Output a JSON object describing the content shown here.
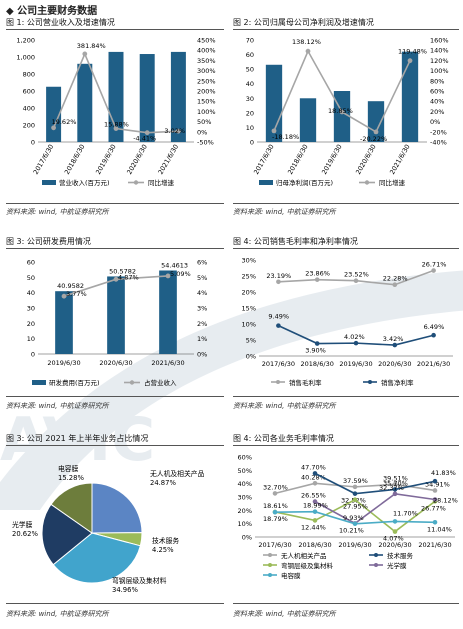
{
  "section_title": "◆ 公司主要财务数据",
  "watermark": "AVIC",
  "charts": [
    {
      "title": "图 1: 公司营业收入及增速情况",
      "source": "资料来源: wind, 中航证券研究所",
      "chart_data": {
        "type": "bar+line",
        "categories": [
          "2017/6/30",
          "2018/6/30",
          "2019/6/30",
          "2020/6/30",
          "2021/6/30"
        ],
        "series": [
          {
            "name": "营业收入(百万元)",
            "type": "bar",
            "axis": "left",
            "values": [
              650,
              920,
              1060,
              1035,
              1060
            ],
            "labels": [
              "",
              "",
              "",
              "",
              ""
            ]
          },
          {
            "name": "同比增速",
            "type": "line",
            "axis": "right",
            "values": [
              19.62,
              381.84,
              15.88,
              -4.41,
              3.02
            ],
            "labels": [
              "19.62%",
              "381.84%",
              "15.88%",
              "-4.41%",
              "3.02%"
            ]
          }
        ],
        "y_left": {
          "min": 0,
          "max": 1200,
          "ticks": [
            "0",
            "200",
            "400",
            "600",
            "800",
            "1,000",
            "1,200"
          ]
        },
        "y_right": {
          "min": -50,
          "max": 450,
          "ticks": [
            "-50%",
            "0%",
            "50%",
            "100%",
            "150%",
            "200%",
            "250%",
            "300%",
            "350%",
            "400%",
            "450%"
          ]
        }
      }
    },
    {
      "title": "图 2: 公司归属母公司净利润及增速情况",
      "source": "资料来源: wind, 中航证券研究所",
      "chart_data": {
        "type": "bar+line",
        "categories": [
          "2017/6/30",
          "2018/6/30",
          "2019/6/30",
          "2020/6/30",
          "2021/6/30"
        ],
        "series": [
          {
            "name": "归母净利润(百万元)",
            "type": "bar",
            "axis": "left",
            "values": [
              53,
              30,
              35,
              28,
              62
            ],
            "labels": [
              "",
              "",
              "",
              "",
              ""
            ]
          },
          {
            "name": "同比增速",
            "type": "line",
            "axis": "right",
            "values": [
              -18.18,
              138.12,
              18.85,
              -20.22,
              119.48
            ],
            "labels": [
              "-18.18%",
              "138.12%",
              "18.85%",
              "-20.22%",
              "119.48%"
            ]
          }
        ],
        "y_left": {
          "min": 0,
          "max": 70,
          "ticks": [
            "0",
            "10",
            "20",
            "30",
            "40",
            "50",
            "60",
            "70"
          ]
        },
        "y_right": {
          "min": -40,
          "max": 160,
          "ticks": [
            "-40%",
            "-20%",
            "0%",
            "20%",
            "40%",
            "60%",
            "80%",
            "100%",
            "120%",
            "140%",
            "160%"
          ]
        }
      }
    },
    {
      "title": "图 3: 公司研发费用情况",
      "source": "资料来源: wind, 中航证券研究所",
      "chart_data": {
        "type": "bar+line",
        "categories": [
          "2019/6/30",
          "2020/6/30",
          "2021/6/30"
        ],
        "series": [
          {
            "name": "研发费用(百万元)",
            "type": "bar",
            "axis": "left",
            "values": [
              40.9582,
              50.5782,
              54.4613
            ],
            "labels": [
              "40.9582",
              "50.5782",
              "54.4613"
            ]
          },
          {
            "name": "占营业收入",
            "type": "line",
            "axis": "right",
            "values": [
              3.77,
              4.87,
              5.09
            ],
            "labels": [
              "3.77%",
              "4.87%",
              "5.09%"
            ]
          }
        ],
        "y_left": {
          "min": 0,
          "max": 60,
          "ticks": [
            "0",
            "10",
            "20",
            "30",
            "40",
            "50",
            "60"
          ]
        },
        "y_right": {
          "min": 0,
          "max": 6,
          "ticks": [
            "0%",
            "1%",
            "2%",
            "3%",
            "4%",
            "5%",
            "6%"
          ]
        }
      }
    },
    {
      "title": "图 4: 公司销售毛利率和净利率情况",
      "source": "资料来源: wind, 中航证券研究所",
      "chart_data": {
        "type": "line",
        "categories": [
          "2017/6/30",
          "2018/6/30",
          "2019/6/30",
          "2020/6/30",
          "2021/6/30"
        ],
        "series": [
          {
            "name": "销售毛利率",
            "color": "#a6a6a6",
            "values": [
              23.19,
              23.86,
              23.52,
              22.28,
              26.71
            ],
            "labels": [
              "23.19%",
              "23.86%",
              "23.52%",
              "22.28%",
              "26.71%"
            ]
          },
          {
            "name": "销售净利率",
            "color": "#1f4e79",
            "values": [
              9.49,
              3.9,
              4.02,
              3.42,
              6.49
            ],
            "labels": [
              "9.49%",
              "3.90%",
              "4.02%",
              "3.42%",
              "6.49%"
            ]
          }
        ],
        "y": {
          "min": 0,
          "max": 30,
          "ticks": [
            "0%",
            "5%",
            "10%",
            "15%",
            "20%",
            "25%",
            "30%"
          ]
        }
      }
    },
    {
      "title": "图 3: 公司 2021 年上半年业务占比情况",
      "source": "资料来源: wind, 中航证券研究所",
      "chart_data": {
        "type": "pie",
        "slices": [
          {
            "label": "无人机及相关产品, 24.87%",
            "value": 24.87,
            "color": "#5b85c4"
          },
          {
            "label": "技术服务, 4.25%",
            "value": 4.25,
            "color": "#9bbb59"
          },
          {
            "label": "弯钢层级及集材料, 34.96%",
            "value": 34.96,
            "color": "#41a4cc"
          },
          {
            "label": "光学膜, 20.62%",
            "value": 20.62,
            "color": "#1f3c63"
          },
          {
            "label": "电容膜, 15.28%",
            "value": 15.28,
            "color": "#6d7d3c"
          }
        ]
      }
    },
    {
      "title": "图 4: 公司各业务毛利率情况",
      "source": "资料来源: wind, 中航证券研究所",
      "chart_data": {
        "type": "line",
        "categories": [
          "2017/6/30",
          "2018/6/30",
          "2019/6/30",
          "2020/6/30",
          "2021/6/30"
        ],
        "series": [
          {
            "name": "无人机相关产品",
            "color": "#a6a6a6",
            "values": [
              32.7,
              40.28,
              37.59,
              39.51,
              34.91
            ],
            "labels": [
              "32.70%",
              "40.28%",
              "37.59%",
              "39.51%",
              "34.91%"
            ]
          },
          {
            "name": "技术服务",
            "color": "#1f4e79",
            "values": [
              null,
              47.7,
              32.52,
              35.7,
              41.83
            ],
            "labels": [
              "",
              "47.70%",
              "32.52%",
              "35.70%",
              "41.83%"
            ]
          },
          {
            "name": "弯钢层级及集材料",
            "color": "#9bbb59",
            "values": [
              18.79,
              12.44,
              27.95,
              4.07,
              26.77
            ],
            "labels": [
              "18.79%",
              "12.44%",
              "27.95%",
              "4.07%",
              "26.77%"
            ]
          },
          {
            "name": "光学膜",
            "color": "#7f6a9a",
            "values": [
              null,
              26.55,
              10.21,
              32.37,
              28.12
            ],
            "labels": [
              "",
              "26.55%",
              "10.21%",
              "32.37%",
              "28.12%"
            ]
          },
          {
            "name": "电容膜",
            "color": "#4bacc6",
            "values": [
              18.61,
              18.99,
              9.93,
              11.7,
              11.04
            ],
            "labels": [
              "18.61%",
              "18.99%",
              "9.93%",
              "11.70%",
              "11.04%"
            ]
          }
        ],
        "y": {
          "min": 0,
          "max": 60,
          "ticks": [
            "0%",
            "10%",
            "20%",
            "30%",
            "40%",
            "50%",
            "60%"
          ]
        }
      }
    }
  ]
}
